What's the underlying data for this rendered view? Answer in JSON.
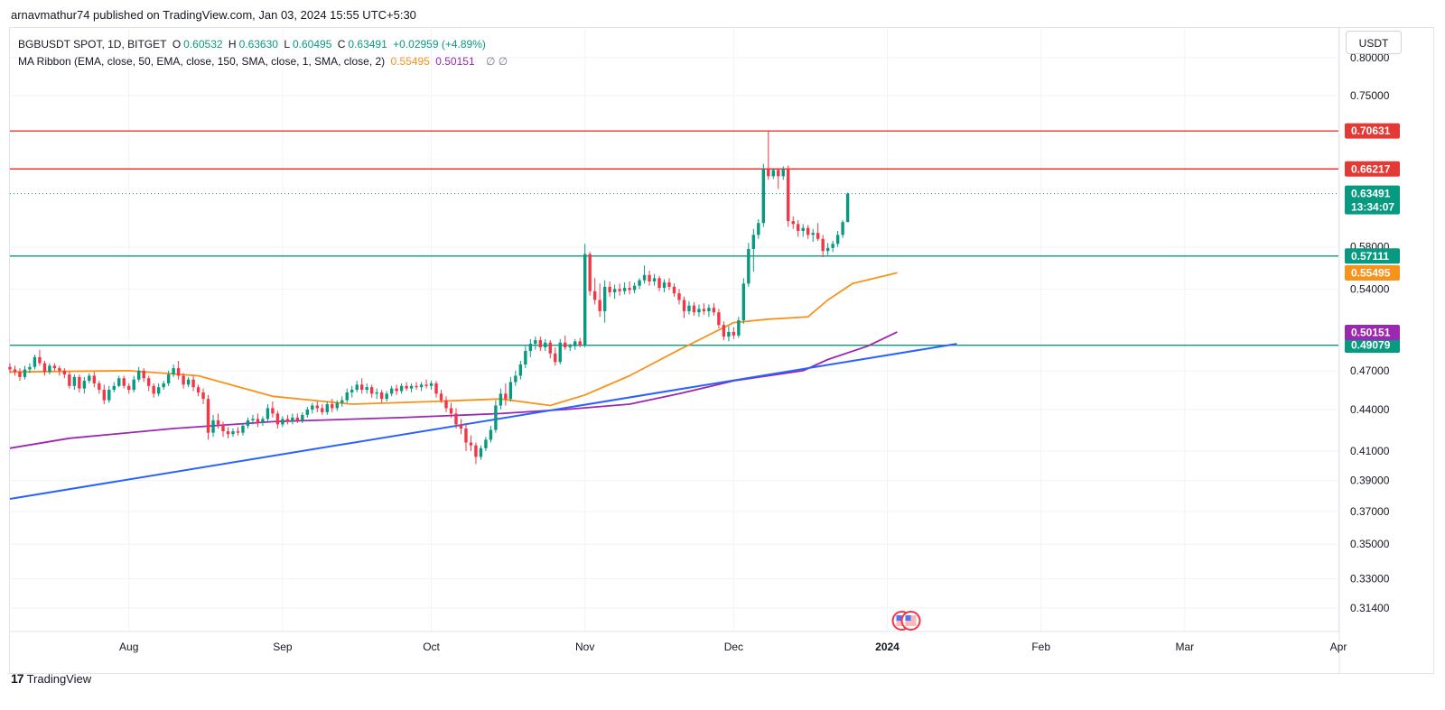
{
  "header": {
    "publish_line": "arnavmathur74 published on TradingView.com, Jan 03, 2024 15:55 UTC+5:30"
  },
  "legend": {
    "symbol": "BGBUSDT SPOT, 1D, BITGET",
    "open_label": "O",
    "open": "0.60532",
    "high_label": "H",
    "high": "0.63630",
    "low_label": "L",
    "low": "0.60495",
    "close_label": "C",
    "close": "0.63491",
    "change": "+0.02959 (+4.89%)",
    "indicator": "MA Ribbon (EMA, close, 50, EMA, close, 150, SMA, close, 1, SMA, close, 2)",
    "ema50_value": "0.55495",
    "ema150_value": "0.50151",
    "empty_values": "∅ ∅"
  },
  "currency_button": "USDT",
  "footer": {
    "logo_mark": "17",
    "brand": "TradingView"
  },
  "colors": {
    "up": "#089981",
    "down": "#f23645",
    "ema50": "#f7931a",
    "ema150": "#9c27b0",
    "trendline": "#2962ff",
    "resistance": "#e53935",
    "support": "#089981"
  },
  "chart_data": {
    "type": "candlestick",
    "symbol": "BGBUSDT",
    "exchange": "BITGET",
    "timeframe": "1D",
    "y_axis": {
      "scale": "log",
      "range": [
        0.3,
        0.83
      ],
      "ticks": [
        "0.80000",
        "0.75000",
        "0.58000",
        "0.54000",
        "0.47000",
        "0.44000",
        "0.41000",
        "0.39000",
        "0.37000",
        "0.35000",
        "0.33000",
        "0.31400"
      ]
    },
    "x_axis": {
      "range": [
        "2023-07-08",
        "2024-04-01"
      ],
      "ticks": [
        {
          "label": "Aug",
          "date": "2023-08-01"
        },
        {
          "label": "Sep",
          "date": "2023-09-01"
        },
        {
          "label": "Oct",
          "date": "2023-10-01"
        },
        {
          "label": "Nov",
          "date": "2023-11-01"
        },
        {
          "label": "Dec",
          "date": "2023-12-01"
        },
        {
          "label": "2024",
          "date": "2024-01-01",
          "bold": true
        },
        {
          "label": "Feb",
          "date": "2024-02-01"
        },
        {
          "label": "Mar",
          "date": "2024-03-01"
        },
        {
          "label": "Apr",
          "date": "2024-04-01"
        }
      ]
    },
    "candles_start_date": "2023-07-08",
    "candles_ohlc": [
      [
        0.473,
        0.476,
        0.468,
        0.471
      ],
      [
        0.471,
        0.474,
        0.466,
        0.469
      ],
      [
        0.469,
        0.472,
        0.462,
        0.465
      ],
      [
        0.465,
        0.474,
        0.463,
        0.471
      ],
      [
        0.471,
        0.476,
        0.468,
        0.473
      ],
      [
        0.473,
        0.483,
        0.471,
        0.481
      ],
      [
        0.481,
        0.487,
        0.474,
        0.476
      ],
      [
        0.476,
        0.478,
        0.466,
        0.469
      ],
      [
        0.469,
        0.476,
        0.467,
        0.474
      ],
      [
        0.474,
        0.476,
        0.47,
        0.472
      ],
      [
        0.472,
        0.474,
        0.466,
        0.47
      ],
      [
        0.47,
        0.472,
        0.464,
        0.467
      ],
      [
        0.467,
        0.469,
        0.456,
        0.458
      ],
      [
        0.458,
        0.467,
        0.455,
        0.465
      ],
      [
        0.465,
        0.467,
        0.453,
        0.456
      ],
      [
        0.456,
        0.465,
        0.452,
        0.462
      ],
      [
        0.462,
        0.468,
        0.46,
        0.466
      ],
      [
        0.466,
        0.469,
        0.457,
        0.46
      ],
      [
        0.46,
        0.462,
        0.452,
        0.455
      ],
      [
        0.455,
        0.459,
        0.444,
        0.447
      ],
      [
        0.447,
        0.458,
        0.445,
        0.455
      ],
      [
        0.455,
        0.461,
        0.453,
        0.458
      ],
      [
        0.458,
        0.466,
        0.457,
        0.464
      ],
      [
        0.464,
        0.466,
        0.456,
        0.458
      ],
      [
        0.458,
        0.46,
        0.452,
        0.455
      ],
      [
        0.455,
        0.466,
        0.453,
        0.463
      ],
      [
        0.463,
        0.473,
        0.461,
        0.47
      ],
      [
        0.47,
        0.472,
        0.461,
        0.464
      ],
      [
        0.464,
        0.466,
        0.454,
        0.458
      ],
      [
        0.458,
        0.46,
        0.449,
        0.452
      ],
      [
        0.452,
        0.46,
        0.45,
        0.457
      ],
      [
        0.457,
        0.462,
        0.455,
        0.46
      ],
      [
        0.46,
        0.47,
        0.458,
        0.467
      ],
      [
        0.467,
        0.475,
        0.465,
        0.472
      ],
      [
        0.472,
        0.478,
        0.463,
        0.466
      ],
      [
        0.466,
        0.468,
        0.456,
        0.459
      ],
      [
        0.459,
        0.465,
        0.457,
        0.463
      ],
      [
        0.463,
        0.466,
        0.454,
        0.457
      ],
      [
        0.457,
        0.459,
        0.45,
        0.453
      ],
      [
        0.453,
        0.456,
        0.444,
        0.448
      ],
      [
        0.448,
        0.451,
        0.418,
        0.423
      ],
      [
        0.423,
        0.436,
        0.42,
        0.432
      ],
      [
        0.432,
        0.437,
        0.426,
        0.429
      ],
      [
        0.429,
        0.431,
        0.42,
        0.424
      ],
      [
        0.424,
        0.427,
        0.419,
        0.422
      ],
      [
        0.422,
        0.426,
        0.42,
        0.424
      ],
      [
        0.424,
        0.427,
        0.421,
        0.423
      ],
      [
        0.423,
        0.43,
        0.421,
        0.428
      ],
      [
        0.428,
        0.434,
        0.426,
        0.432
      ],
      [
        0.432,
        0.436,
        0.429,
        0.433
      ],
      [
        0.433,
        0.437,
        0.427,
        0.43
      ],
      [
        0.43,
        0.435,
        0.428,
        0.433
      ],
      [
        0.433,
        0.444,
        0.431,
        0.441
      ],
      [
        0.441,
        0.446,
        0.434,
        0.437
      ],
      [
        0.437,
        0.439,
        0.426,
        0.429
      ],
      [
        0.429,
        0.435,
        0.427,
        0.433
      ],
      [
        0.433,
        0.436,
        0.429,
        0.431
      ],
      [
        0.431,
        0.437,
        0.429,
        0.434
      ],
      [
        0.434,
        0.437,
        0.43,
        0.432
      ],
      [
        0.432,
        0.438,
        0.43,
        0.436
      ],
      [
        0.436,
        0.442,
        0.434,
        0.44
      ],
      [
        0.44,
        0.445,
        0.437,
        0.443
      ],
      [
        0.443,
        0.446,
        0.438,
        0.441
      ],
      [
        0.441,
        0.444,
        0.436,
        0.438
      ],
      [
        0.438,
        0.446,
        0.436,
        0.444
      ],
      [
        0.444,
        0.448,
        0.438,
        0.441
      ],
      [
        0.441,
        0.447,
        0.439,
        0.445
      ],
      [
        0.445,
        0.45,
        0.442,
        0.447
      ],
      [
        0.447,
        0.456,
        0.445,
        0.453
      ],
      [
        0.453,
        0.458,
        0.449,
        0.455
      ],
      [
        0.455,
        0.462,
        0.453,
        0.459
      ],
      [
        0.459,
        0.464,
        0.452,
        0.455
      ],
      [
        0.455,
        0.46,
        0.452,
        0.457
      ],
      [
        0.457,
        0.459,
        0.449,
        0.452
      ],
      [
        0.452,
        0.456,
        0.448,
        0.453
      ],
      [
        0.453,
        0.455,
        0.445,
        0.448
      ],
      [
        0.448,
        0.454,
        0.446,
        0.452
      ],
      [
        0.452,
        0.458,
        0.45,
        0.456
      ],
      [
        0.456,
        0.459,
        0.451,
        0.454
      ],
      [
        0.454,
        0.46,
        0.452,
        0.458
      ],
      [
        0.458,
        0.461,
        0.454,
        0.456
      ],
      [
        0.456,
        0.46,
        0.453,
        0.458
      ],
      [
        0.458,
        0.461,
        0.455,
        0.457
      ],
      [
        0.457,
        0.461,
        0.454,
        0.459
      ],
      [
        0.459,
        0.463,
        0.456,
        0.458
      ],
      [
        0.458,
        0.462,
        0.455,
        0.46
      ],
      [
        0.46,
        0.462,
        0.449,
        0.452
      ],
      [
        0.452,
        0.455,
        0.445,
        0.447
      ],
      [
        0.447,
        0.45,
        0.438,
        0.441
      ],
      [
        0.441,
        0.445,
        0.434,
        0.437
      ],
      [
        0.437,
        0.441,
        0.426,
        0.429
      ],
      [
        0.429,
        0.433,
        0.422,
        0.426
      ],
      [
        0.426,
        0.43,
        0.41,
        0.416
      ],
      [
        0.416,
        0.421,
        0.41,
        0.414
      ],
      [
        0.414,
        0.416,
        0.401,
        0.406
      ],
      [
        0.406,
        0.414,
        0.404,
        0.412
      ],
      [
        0.412,
        0.42,
        0.41,
        0.418
      ],
      [
        0.418,
        0.428,
        0.416,
        0.425
      ],
      [
        0.425,
        0.447,
        0.423,
        0.443
      ],
      [
        0.443,
        0.456,
        0.44,
        0.452
      ],
      [
        0.452,
        0.46,
        0.443,
        0.448
      ],
      [
        0.448,
        0.465,
        0.446,
        0.461
      ],
      [
        0.461,
        0.47,
        0.458,
        0.466
      ],
      [
        0.466,
        0.478,
        0.463,
        0.475
      ],
      [
        0.475,
        0.49,
        0.472,
        0.486
      ],
      [
        0.486,
        0.496,
        0.481,
        0.492
      ],
      [
        0.492,
        0.498,
        0.487,
        0.495
      ],
      [
        0.495,
        0.498,
        0.486,
        0.489
      ],
      [
        0.489,
        0.496,
        0.486,
        0.493
      ],
      [
        0.493,
        0.495,
        0.48,
        0.484
      ],
      [
        0.484,
        0.489,
        0.474,
        0.477
      ],
      [
        0.477,
        0.496,
        0.475,
        0.493
      ],
      [
        0.493,
        0.499,
        0.487,
        0.489
      ],
      [
        0.489,
        0.492,
        0.486,
        0.49
      ],
      [
        0.49,
        0.496,
        0.487,
        0.494
      ],
      [
        0.494,
        0.497,
        0.489,
        0.491
      ],
      [
        0.491,
        0.583,
        0.489,
        0.573
      ],
      [
        0.573,
        0.575,
        0.534,
        0.538
      ],
      [
        0.538,
        0.55,
        0.526,
        0.53
      ],
      [
        0.53,
        0.545,
        0.515,
        0.52
      ],
      [
        0.52,
        0.548,
        0.51,
        0.542
      ],
      [
        0.542,
        0.547,
        0.533,
        0.537
      ],
      [
        0.537,
        0.544,
        0.531,
        0.54
      ],
      [
        0.54,
        0.545,
        0.534,
        0.538
      ],
      [
        0.538,
        0.546,
        0.535,
        0.541
      ],
      [
        0.541,
        0.547,
        0.535,
        0.539
      ],
      [
        0.539,
        0.546,
        0.536,
        0.543
      ],
      [
        0.543,
        0.55,
        0.54,
        0.548
      ],
      [
        0.548,
        0.562,
        0.545,
        0.553
      ],
      [
        0.553,
        0.557,
        0.543,
        0.547
      ],
      [
        0.547,
        0.554,
        0.543,
        0.55
      ],
      [
        0.55,
        0.552,
        0.538,
        0.541
      ],
      [
        0.541,
        0.549,
        0.537,
        0.546
      ],
      [
        0.546,
        0.55,
        0.539,
        0.542
      ],
      [
        0.542,
        0.545,
        0.533,
        0.536
      ],
      [
        0.536,
        0.54,
        0.526,
        0.53
      ],
      [
        0.53,
        0.533,
        0.514,
        0.52
      ],
      [
        0.52,
        0.529,
        0.517,
        0.525
      ],
      [
        0.525,
        0.528,
        0.516,
        0.519
      ],
      [
        0.519,
        0.526,
        0.515,
        0.522
      ],
      [
        0.522,
        0.527,
        0.517,
        0.52
      ],
      [
        0.52,
        0.526,
        0.515,
        0.523
      ],
      [
        0.523,
        0.527,
        0.516,
        0.519
      ],
      [
        0.519,
        0.522,
        0.505,
        0.508
      ],
      [
        0.508,
        0.511,
        0.495,
        0.498
      ],
      [
        0.498,
        0.507,
        0.494,
        0.502
      ],
      [
        0.502,
        0.506,
        0.496,
        0.499
      ],
      [
        0.499,
        0.515,
        0.497,
        0.512
      ],
      [
        0.512,
        0.55,
        0.509,
        0.545
      ],
      [
        0.545,
        0.584,
        0.542,
        0.578
      ],
      [
        0.578,
        0.598,
        0.556,
        0.592
      ],
      [
        0.592,
        0.608,
        0.588,
        0.604
      ],
      [
        0.604,
        0.668,
        0.6,
        0.662
      ],
      [
        0.662,
        0.706,
        0.65,
        0.654
      ],
      [
        0.654,
        0.663,
        0.651,
        0.661
      ],
      [
        0.661,
        0.662,
        0.64,
        0.654
      ],
      [
        0.654,
        0.665,
        0.65,
        0.662
      ],
      [
        0.662,
        0.666,
        0.6,
        0.606
      ],
      [
        0.606,
        0.611,
        0.598,
        0.603
      ],
      [
        0.603,
        0.607,
        0.59,
        0.596
      ],
      [
        0.596,
        0.603,
        0.59,
        0.599
      ],
      [
        0.599,
        0.602,
        0.588,
        0.592
      ],
      [
        0.592,
        0.598,
        0.585,
        0.594
      ],
      [
        0.594,
        0.604,
        0.586,
        0.588
      ],
      [
        0.588,
        0.592,
        0.57,
        0.576
      ],
      [
        0.576,
        0.584,
        0.572,
        0.579
      ],
      [
        0.579,
        0.586,
        0.575,
        0.583
      ],
      [
        0.583,
        0.596,
        0.58,
        0.592
      ],
      [
        0.592,
        0.607,
        0.589,
        0.605
      ],
      [
        0.605,
        0.636,
        0.605,
        0.635
      ]
    ],
    "series": [
      {
        "name": "EMA 50",
        "color": "#f7931a",
        "end_value": 0.55495,
        "points": [
          [
            "2023-07-08",
            0.469
          ],
          [
            "2023-08-01",
            0.47
          ],
          [
            "2023-08-15",
            0.466
          ],
          [
            "2023-08-30",
            0.45
          ],
          [
            "2023-09-15",
            0.444
          ],
          [
            "2023-10-01",
            0.446
          ],
          [
            "2023-10-15",
            0.448
          ],
          [
            "2023-10-25",
            0.443
          ],
          [
            "2023-11-01",
            0.451
          ],
          [
            "2023-11-10",
            0.466
          ],
          [
            "2023-11-20",
            0.487
          ],
          [
            "2023-12-01",
            0.51
          ],
          [
            "2023-12-08",
            0.513
          ],
          [
            "2023-12-16",
            0.515
          ],
          [
            "2023-12-20",
            0.53
          ],
          [
            "2023-12-25",
            0.545
          ],
          [
            "2024-01-03",
            0.555
          ]
        ]
      },
      {
        "name": "EMA 150",
        "color": "#9c27b0",
        "end_value": 0.50151,
        "points": [
          [
            "2023-07-08",
            0.412
          ],
          [
            "2023-07-20",
            0.419
          ],
          [
            "2023-08-10",
            0.426
          ],
          [
            "2023-08-30",
            0.431
          ],
          [
            "2023-09-25",
            0.434
          ],
          [
            "2023-10-15",
            0.437
          ],
          [
            "2023-10-28",
            0.44
          ],
          [
            "2023-11-10",
            0.444
          ],
          [
            "2023-11-20",
            0.452
          ],
          [
            "2023-12-01",
            0.462
          ],
          [
            "2023-12-15",
            0.47
          ],
          [
            "2023-12-20",
            0.479
          ],
          [
            "2023-12-28",
            0.49
          ],
          [
            "2024-01-03",
            0.502
          ]
        ]
      },
      {
        "name": "Trend line",
        "color": "#2962ff",
        "points": [
          [
            "2023-07-08",
            0.378
          ],
          [
            "2024-01-15",
            0.492
          ]
        ]
      }
    ],
    "horizontal_levels": [
      {
        "value": 0.70631,
        "label": "0.70631",
        "color": "#e53935"
      },
      {
        "value": 0.66217,
        "label": "0.66217",
        "color": "#e53935"
      },
      {
        "value": 0.57111,
        "label": "0.57111",
        "color": "#089981"
      },
      {
        "value": 0.49079,
        "label": "0.49079",
        "color": "#089981"
      }
    ],
    "last_price": {
      "value": 0.63491,
      "label": "0.63491",
      "countdown": "13:34:07",
      "color": "#089981"
    },
    "ma_price_labels": [
      {
        "value": 0.55495,
        "label": "0.55495",
        "color": "#f7931a"
      },
      {
        "value": 0.50151,
        "label": "0.50151",
        "color": "#9c27b0"
      }
    ]
  }
}
